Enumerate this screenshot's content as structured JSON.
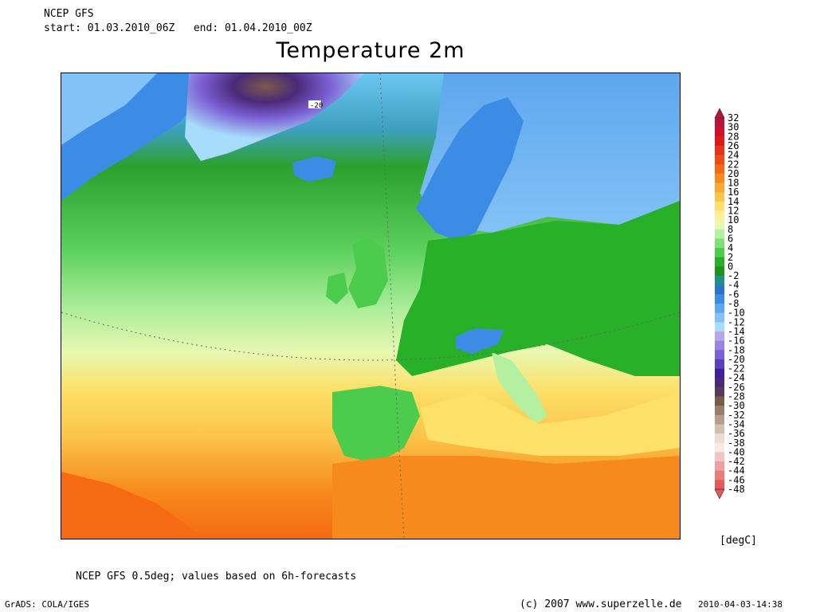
{
  "header": {
    "model": "NCEP GFS",
    "period": "start: 01.03.2010_06Z   end: 01.04.2010_00Z",
    "title": "Temperature 2m"
  },
  "map": {
    "contour_label": "-20",
    "land_color": "#2ca02c",
    "ocean_warm_color": "#f5a623",
    "cold_color": "#3f7fd6"
  },
  "legend": {
    "unit": "[degC]",
    "levels": [
      "32",
      "30",
      "28",
      "26",
      "24",
      "22",
      "20",
      "18",
      "16",
      "14",
      "12",
      "10",
      "8",
      "6",
      "4",
      "2",
      "0",
      "-2",
      "-4",
      "-6",
      "-8",
      "-10",
      "-12",
      "-14",
      "-16",
      "-18",
      "-20",
      "-22",
      "-24",
      "-26",
      "-28",
      "-30",
      "-32",
      "-34",
      "-36",
      "-38",
      "-40",
      "-42",
      "-44",
      "-46",
      "-48"
    ],
    "colors": [
      "#b8143a",
      "#d0102c",
      "#e01818",
      "#e8321a",
      "#f04c14",
      "#f56a12",
      "#f78a1c",
      "#f9a832",
      "#fbc44a",
      "#fde068",
      "#fff098",
      "#e8f8b0",
      "#b4f0a0",
      "#7fe07a",
      "#4ccb4c",
      "#28b028",
      "#1a941a",
      "#208c8c",
      "#2a74d0",
      "#3c8ce6",
      "#5ea6ee",
      "#82c2f6",
      "#a8dcfc",
      "#b4a8ec",
      "#9a84e0",
      "#7c60d4",
      "#5c40c0",
      "#3c22a0",
      "#4a2a78",
      "#5a3a5a",
      "#7a5a4a",
      "#9a7c6c",
      "#b89c8c",
      "#d4beb2",
      "#ecdcd4",
      "#f8eae6",
      "#f4c4c4",
      "#f0a0a0",
      "#ec7c7c",
      "#e45a5a"
    ]
  },
  "footer": {
    "source": "NCEP GFS 0.5deg; values based on 6h-forecasts",
    "grads": "GrADS: COLA/IGES",
    "copyright": "(c) 2007 www.superzelle.de",
    "date": "2010-04-03-14:38"
  }
}
